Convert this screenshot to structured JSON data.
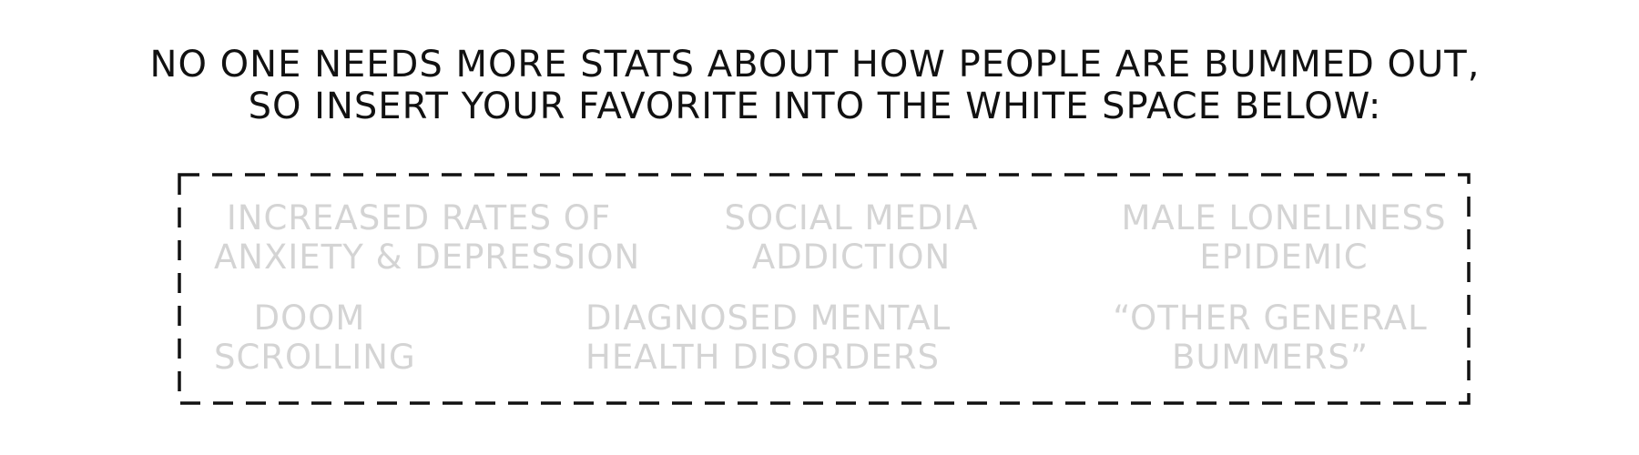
{
  "headline": {
    "line1": "NO ONE NEEDS MORE STATS ABOUT HOW PEOPLE ARE BUMMED OUT,",
    "line2": "SO INSERT YOUR FAVORITE INTO THE WHITE SPACE BELOW:"
  },
  "placeholders": {
    "anxiety": {
      "line1": "INCREASED RATES OF",
      "line2": "ANXIETY & DEPRESSION"
    },
    "social_media": {
      "line1": "SOCIAL MEDIA",
      "line2": "ADDICTION"
    },
    "loneliness": {
      "line1": "MALE LONELINESS",
      "line2": "EPIDEMIC"
    },
    "doom": {
      "line1": "DOOM",
      "line2": "SCROLLING"
    },
    "mental_health": {
      "line1": "DIAGNOSED MENTAL",
      "line2": "HEALTH DISORDERS"
    },
    "other": {
      "line1": "“OTHER GENERAL",
      "line2": "BUMMERS”"
    }
  },
  "colors": {
    "headline": "#111111",
    "placeholder_text": "#d4d4d4",
    "dashed_border": "#111111"
  }
}
